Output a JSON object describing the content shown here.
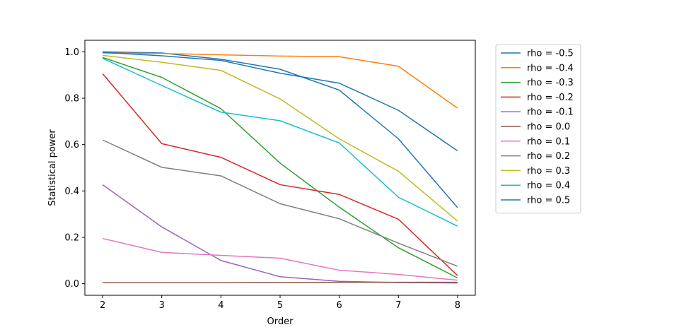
{
  "chart_data": {
    "type": "line",
    "title": "",
    "xlabel": "Order",
    "ylabel": "Statistical power",
    "x": [
      2,
      3,
      4,
      5,
      6,
      7,
      8
    ],
    "xticks": [
      2,
      3,
      4,
      5,
      6,
      7,
      8
    ],
    "yticks": [
      0.0,
      0.2,
      0.4,
      0.6,
      0.8,
      1.0
    ],
    "ytick_labels": [
      "0.0",
      "0.2",
      "0.4",
      "0.6",
      "0.8",
      "1.0"
    ],
    "xlim": [
      1.7,
      8.3
    ],
    "ylim": [
      -0.05,
      1.05
    ],
    "grid": false,
    "legend_placement": "outside-right",
    "series": [
      {
        "name": "rho = -0.5",
        "color": "#1f77b4",
        "values": [
          1.0,
          0.995,
          0.968,
          0.925,
          0.835,
          0.625,
          0.328
        ]
      },
      {
        "name": "rho = -0.4",
        "color": "#ff7f0e",
        "values": [
          0.995,
          0.993,
          0.987,
          0.982,
          0.979,
          0.938,
          0.757
        ]
      },
      {
        "name": "rho = -0.3",
        "color": "#2ca02c",
        "values": [
          0.976,
          0.89,
          0.755,
          0.52,
          0.33,
          0.155,
          0.025
        ]
      },
      {
        "name": "rho = -0.2",
        "color": "#d62728",
        "values": [
          0.906,
          0.604,
          0.545,
          0.427,
          0.385,
          0.278,
          0.035
        ]
      },
      {
        "name": "rho = -0.1",
        "color": "#9467bd",
        "values": [
          0.427,
          0.245,
          0.1,
          0.03,
          0.01,
          0.005,
          0.003
        ]
      },
      {
        "name": "rho = 0.0",
        "color": "#8c564b",
        "values": [
          0.004,
          0.004,
          0.004,
          0.005,
          0.006,
          0.006,
          0.006
        ]
      },
      {
        "name": "rho = 0.1",
        "color": "#e377c2",
        "values": [
          0.195,
          0.135,
          0.122,
          0.11,
          0.058,
          0.04,
          0.015
        ]
      },
      {
        "name": "rho = 0.2",
        "color": "#7f7f7f",
        "values": [
          0.62,
          0.502,
          0.465,
          0.345,
          0.28,
          0.175,
          0.075
        ]
      },
      {
        "name": "rho = 0.3",
        "color": "#bcbd22",
        "values": [
          0.985,
          0.955,
          0.92,
          0.797,
          0.625,
          0.485,
          0.27
        ]
      },
      {
        "name": "rho = 0.4",
        "color": "#17becf",
        "values": [
          0.972,
          0.855,
          0.74,
          0.703,
          0.607,
          0.373,
          0.248
        ]
      },
      {
        "name": "rho = 0.5",
        "color": "#1f77b4",
        "values": [
          0.998,
          0.983,
          0.963,
          0.908,
          0.865,
          0.748,
          0.573
        ]
      }
    ]
  }
}
